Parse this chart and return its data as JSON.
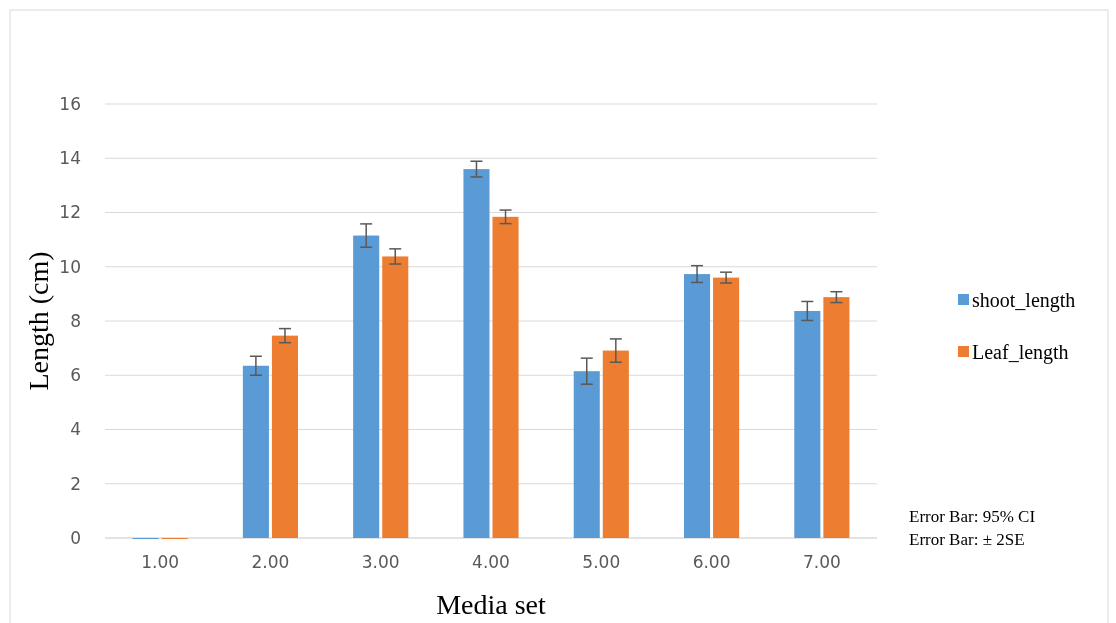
{
  "chart_data": {
    "type": "bar",
    "xlabel": "Media set",
    "ylabel": "Length (cm)",
    "categories": [
      "1.00",
      "2.00",
      "3.00",
      "4.00",
      "5.00",
      "6.00",
      "7.00"
    ],
    "series": [
      {
        "name": "shoot_length",
        "color": "#5b9bd5",
        "values": [
          0,
          6.35,
          11.15,
          13.6,
          6.15,
          9.73,
          8.37
        ],
        "errors": [
          null,
          0.35,
          0.43,
          0.29,
          0.48,
          0.31,
          0.35
        ]
      },
      {
        "name": "Leaf_length",
        "color": "#ed7d31",
        "values": [
          0,
          7.46,
          10.38,
          11.84,
          6.91,
          9.6,
          8.88
        ],
        "errors": [
          null,
          0.26,
          0.28,
          0.25,
          0.43,
          0.2,
          0.2
        ]
      }
    ],
    "ylim": [
      0,
      16
    ],
    "yticks": [
      0,
      2,
      4,
      6,
      8,
      10,
      12,
      14,
      16
    ],
    "grid": "y",
    "legend": "right",
    "annotations": [
      "Error Bar: 95% CI",
      "Error Bar: ± 2SE"
    ]
  }
}
